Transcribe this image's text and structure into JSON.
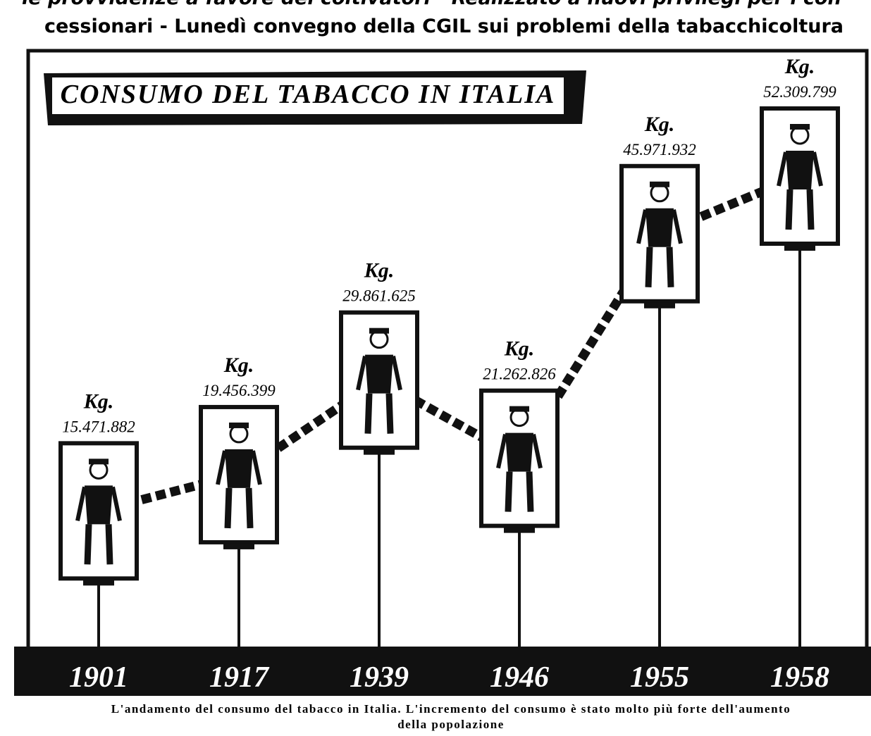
{
  "header": {
    "lines": [
      "le provvidenze a favore dei coltivatori - Realizzato a nuovi privilegi per i con-",
      "cessionari - Lunedì convegno della CGIL sui problemi della tabacchicoltura"
    ]
  },
  "chart_data": {
    "type": "line",
    "title": "CONSUMO DEL TABACCO IN ITALIA",
    "categories": [
      "1901",
      "1917",
      "1939",
      "1946",
      "1955",
      "1958"
    ],
    "values": [
      15471882,
      19456399,
      29861625,
      21262826,
      45971932,
      52309799
    ],
    "value_labels": [
      "15.471.882",
      "19.456.399",
      "29.861.625",
      "21.262.826",
      "45.971.932",
      "52.309.799"
    ],
    "unit_label": "Kg.",
    "color": "#111111"
  },
  "caption": "L'andamento del consumo del tabacco in Italia. L'incremento del consumo è stato molto più forte dell'aumento della popolazione"
}
